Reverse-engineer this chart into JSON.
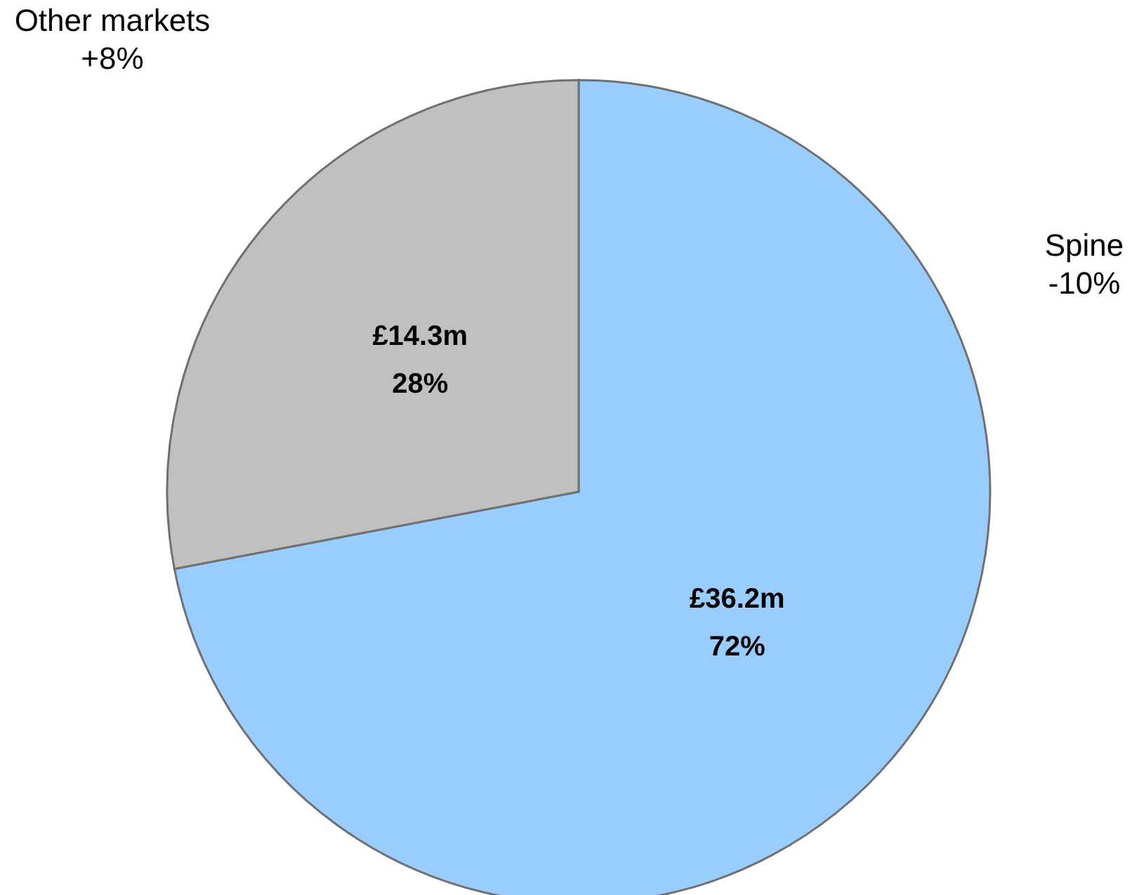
{
  "chart_data": {
    "type": "pie",
    "categories": [
      "Spine",
      "Other markets"
    ],
    "values": [
      72,
      28
    ],
    "colors": [
      "#99ccff",
      "#c0c0c0"
    ],
    "value_labels": [
      "£36.2m\n72%",
      "£14.3m\n28%"
    ],
    "annotations": [
      {
        "text": "-10%",
        "x": "Spine"
      },
      {
        "text": "+8%",
        "x": "Other markets"
      }
    ]
  }
}
